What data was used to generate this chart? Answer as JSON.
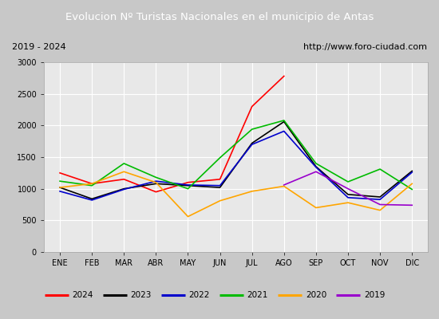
{
  "title": "Evolucion Nº Turistas Nacionales en el municipio de Antas",
  "subtitle_left": "2019 - 2024",
  "subtitle_right": "http://www.foro-ciudad.com",
  "months": [
    "ENE",
    "FEB",
    "MAR",
    "ABR",
    "MAY",
    "JUN",
    "JUL",
    "AGO",
    "SEP",
    "OCT",
    "NOV",
    "DIC"
  ],
  "series": {
    "2024": [
      1250,
      1080,
      1150,
      950,
      1100,
      1150,
      2300,
      2780,
      null,
      null,
      null,
      null
    ],
    "2023": [
      1020,
      840,
      1000,
      1080,
      1050,
      1020,
      1720,
      2060,
      1350,
      910,
      870,
      1280
    ],
    "2022": [
      960,
      820,
      990,
      1120,
      1060,
      1050,
      1700,
      1910,
      1340,
      860,
      830,
      1260
    ],
    "2021": [
      1120,
      1050,
      1400,
      1180,
      1000,
      1490,
      1940,
      2080,
      1400,
      1110,
      1310,
      990
    ],
    "2020": [
      1020,
      1080,
      1270,
      1100,
      560,
      810,
      960,
      1040,
      700,
      780,
      660,
      1080
    ],
    "2019": [
      null,
      null,
      null,
      null,
      null,
      null,
      null,
      1060,
      1270,
      1000,
      750,
      740
    ]
  },
  "colors": {
    "2024": "#ff0000",
    "2023": "#000000",
    "2022": "#0000cc",
    "2021": "#00bb00",
    "2020": "#ffa500",
    "2019": "#9900cc"
  },
  "ylim": [
    0,
    3000
  ],
  "yticks": [
    0,
    500,
    1000,
    1500,
    2000,
    2500,
    3000
  ],
  "title_bg_color": "#4d79c7",
  "title_text_color": "#ffffff",
  "header_bg_color": "#e8e8e8",
  "plot_bg_color": "#e8e8e8",
  "outer_bg_color": "#c8c8c8",
  "grid_color": "#ffffff",
  "linewidth": 1.2,
  "legend_years": [
    "2024",
    "2023",
    "2022",
    "2021",
    "2020",
    "2019"
  ]
}
